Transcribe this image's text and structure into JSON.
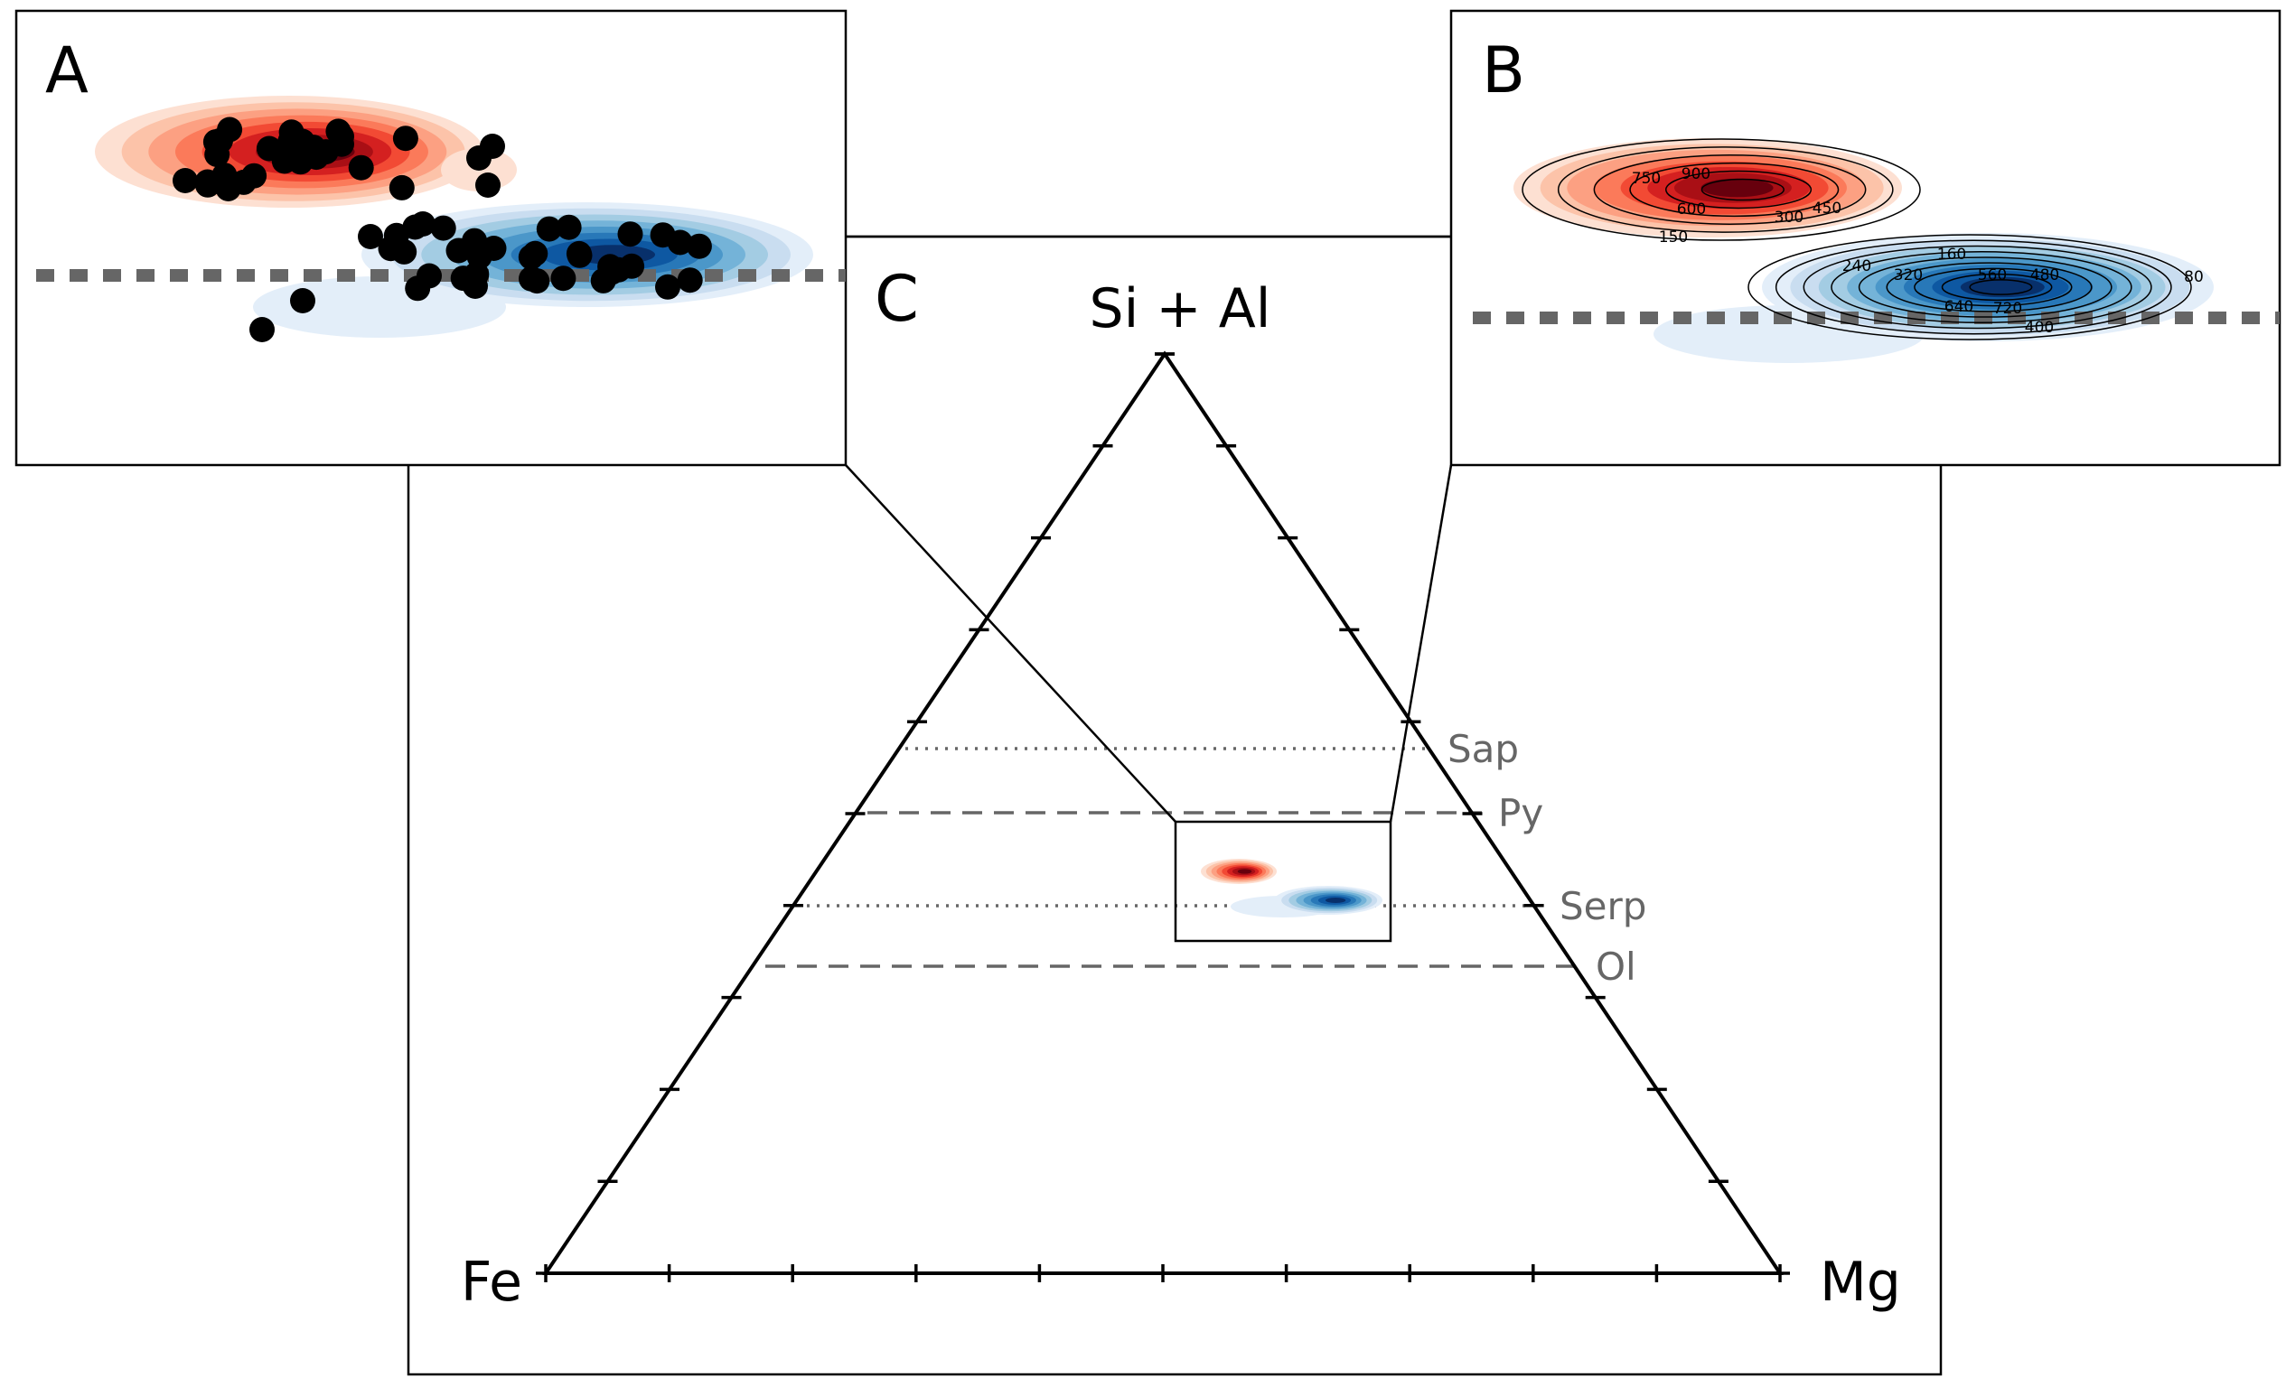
{
  "colors": {
    "red_series": "#d7301f",
    "blue_series": "#08519c",
    "reference_line": "#666666",
    "axis": "#000000"
  },
  "chart_data": [
    {
      "panel": "C",
      "type": "scatter",
      "subtype": "ternary density plot",
      "vertices": {
        "top": "Si + Al",
        "left": "Fe",
        "right": "Mg"
      },
      "tick_divisions": 10,
      "reference_lines": [
        {
          "label": "Sap",
          "style": "dotted"
        },
        {
          "label": "Py",
          "style": "dashed"
        },
        {
          "label": "Serp",
          "style": "dotted"
        },
        {
          "label": "Ol",
          "style": "dashed"
        }
      ],
      "series": [
        {
          "color": "red"
        },
        {
          "color": "blue"
        }
      ],
      "zoom_box": true
    },
    {
      "panel": "A",
      "type": "scatter",
      "subtype": "filled density with data points",
      "reference_line": "dotted",
      "series": [
        {
          "color": "red",
          "points": 28
        },
        {
          "color": "blue",
          "points": 34
        }
      ]
    },
    {
      "panel": "B",
      "type": "heatmap",
      "subtype": "labeled density contours",
      "reference_line": "dotted",
      "series": [
        {
          "color": "red",
          "contour_levels": [
            150,
            300,
            450,
            600,
            750,
            900
          ]
        },
        {
          "color": "blue",
          "contour_levels": [
            80,
            160,
            240,
            320,
            400,
            480,
            560,
            640,
            720
          ]
        }
      ]
    }
  ]
}
